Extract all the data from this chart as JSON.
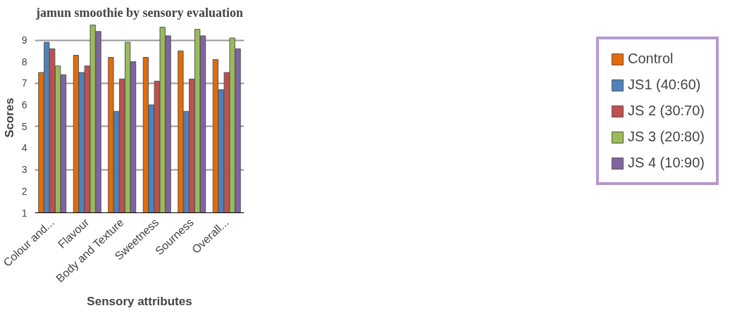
{
  "chart_data": {
    "type": "bar",
    "title": "jamun smoothie by sensory evaluation",
    "xlabel": "Sensory attributes",
    "ylabel": "Scores",
    "categories": [
      "Colour and...",
      "Flavour",
      "Body and Texture",
      "Sweetness",
      "Sourness",
      "Overall..."
    ],
    "series": [
      {
        "name": "Control",
        "color": "#e36c09",
        "values": [
          7.5,
          8.3,
          8.2,
          8.2,
          8.5,
          8.1
        ]
      },
      {
        "name": "JS1 (40:60)",
        "color": "#4f81bd",
        "values": [
          8.9,
          7.5,
          5.7,
          6.0,
          5.7,
          6.7
        ]
      },
      {
        "name": "JS 2 (30:70)",
        "color": "#c0504d",
        "values": [
          8.6,
          7.8,
          7.2,
          7.1,
          7.2,
          7.5
        ]
      },
      {
        "name": "JS 3 (20:80)",
        "color": "#9bbb59",
        "values": [
          7.8,
          9.7,
          8.9,
          9.6,
          9.5,
          9.1
        ]
      },
      {
        "name": "JS 4 (10:90)",
        "color": "#8064a2",
        "values": [
          7.4,
          9.4,
          8.0,
          9.2,
          9.2,
          8.6
        ]
      }
    ],
    "ylim": [
      1,
      9.8
    ],
    "yticks": [
      1,
      2,
      3,
      4,
      5,
      6,
      7,
      8,
      9
    ],
    "grid": "y",
    "legend": "right"
  }
}
